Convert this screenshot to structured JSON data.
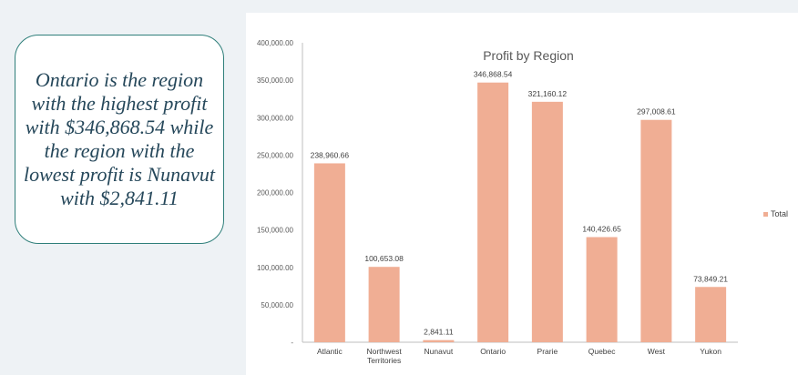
{
  "callout": {
    "text": "Ontario is the region with the highest profit with $346,868.54 while the region with the lowest profit is Nunavut with $2,841.11"
  },
  "colors": {
    "bar": "#f0ae94",
    "callout_border": "#2f7f7a",
    "callout_text": "#25475a",
    "background": "#eef2f5"
  },
  "chart_data": {
    "type": "bar",
    "title": "Profit by Region",
    "xlabel": "",
    "ylabel": "",
    "categories": [
      "Atlantic",
      "Northwest Territories",
      "Nunavut",
      "Ontario",
      "Prarie",
      "Quebec",
      "West",
      "Yukon"
    ],
    "series": [
      {
        "name": "Total",
        "values": [
          238960.66,
          100653.08,
          2841.11,
          346868.54,
          321160.12,
          140426.65,
          297008.61,
          73849.21
        ],
        "labels": [
          "238,960.66",
          "100,653.08",
          "2,841.11",
          "346,868.54",
          "321,160.12",
          "140,426.65",
          "297,008.61",
          "73,849.21"
        ]
      }
    ],
    "ylim": [
      0,
      400000
    ],
    "yticks": [
      0,
      50000,
      100000,
      150000,
      200000,
      250000,
      300000,
      350000,
      400000
    ],
    "ytick_labels": [
      "-",
      "50,000.00",
      "100,000.00",
      "150,000.00",
      "200,000.00",
      "250,000.00",
      "300,000.00",
      "350,000.00",
      "400,000.00"
    ],
    "grid": false,
    "legend": "right"
  }
}
